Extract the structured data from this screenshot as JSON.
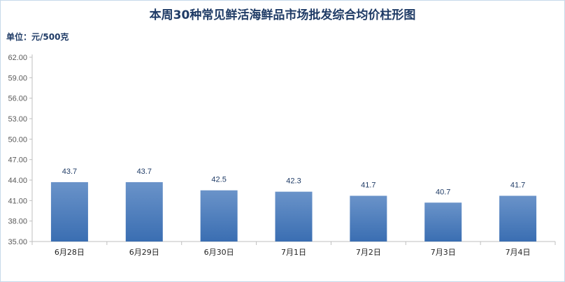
{
  "chart_data": {
    "type": "bar",
    "title": "本周30种常见鲜活海鲜品市场批发综合均价柱形图",
    "unit_label": "单位：元/500克",
    "categories": [
      "6月28日",
      "6月29日",
      "6月30日",
      "7月1日",
      "7月2日",
      "7月3日",
      "7月4日"
    ],
    "values": [
      43.7,
      43.7,
      42.5,
      42.3,
      41.7,
      40.7,
      41.7
    ],
    "value_labels": [
      "43.7",
      "43.7",
      "42.5",
      "42.3",
      "41.7",
      "40.7",
      "41.7"
    ],
    "y_ticks": [
      "35.00",
      "38.00",
      "41.00",
      "44.00",
      "47.00",
      "50.00",
      "53.00",
      "56.00",
      "59.00",
      "62.00"
    ],
    "ylim": [
      35,
      62
    ],
    "grid": false,
    "legend": "none",
    "colors": {
      "bar_top": "#6a93c9",
      "bar_bottom": "#3a6eb2",
      "title": "#1f3b66"
    }
  }
}
